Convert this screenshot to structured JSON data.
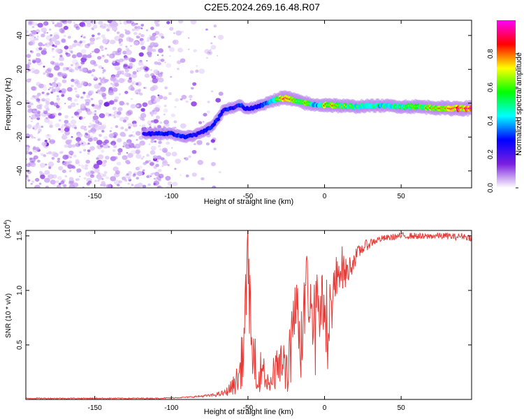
{
  "title": "C2E5.2024.269.16.48.R07",
  "chart_data": [
    {
      "type": "heatmap",
      "xlabel": "Height of straight line (km)",
      "ylabel": "Frequency (Hz)",
      "xlim": [
        -195,
        96
      ],
      "ylim": [
        -50,
        49
      ],
      "x_ticks": [
        -150,
        -100,
        -50,
        0,
        50
      ],
      "y_ticks": [
        -40,
        -20,
        0,
        20,
        40
      ],
      "colorbar": {
        "label": "Normalized spectral amplitude",
        "range": [
          0,
          1
        ],
        "ticks": [
          "0.0",
          "0.2",
          "0.4",
          "0.6",
          "0.8"
        ],
        "colormap": [
          "#ffffff",
          "#7b1fe0",
          "#0000ff",
          "#00ffff",
          "#00ff00",
          "#ffff00",
          "#ff0000",
          "#ff00ff"
        ]
      },
      "ridge": {
        "x": [
          -118,
          -108,
          -100,
          -92,
          -85,
          -80,
          -74,
          -70,
          -66,
          -62,
          -58,
          -55,
          -52,
          -48,
          -44,
          -40,
          -36,
          -32,
          -28,
          -24,
          -20,
          -16,
          -12,
          -8,
          -4,
          0,
          10,
          20,
          30,
          40,
          50,
          60,
          70,
          80,
          90,
          96
        ],
        "y": [
          -18,
          -18,
          -18,
          -20,
          -19,
          -17,
          -14,
          -10,
          -4,
          -3,
          -2,
          -1,
          -3,
          -3,
          -2,
          -1,
          1,
          2,
          3,
          3,
          2,
          1,
          0,
          -1,
          -1,
          -1,
          -1.5,
          -2,
          -1.5,
          -1.5,
          -2,
          -2,
          -2.5,
          -3,
          -3,
          -3
        ],
        "intensity": [
          0.3,
          0.35,
          0.35,
          0.4,
          0.35,
          0.35,
          0.35,
          0.4,
          0.35,
          0.35,
          0.3,
          0.4,
          0.3,
          0.35,
          0.35,
          0.4,
          0.45,
          0.55,
          0.85,
          0.9,
          0.7,
          0.6,
          0.8,
          0.55,
          0.5,
          0.8,
          0.7,
          0.6,
          0.55,
          0.55,
          0.6,
          0.7,
          0.75,
          0.85,
          0.95,
          0.9
        ]
      },
      "noise_region_x": [
        -195,
        -72
      ]
    },
    {
      "type": "line",
      "xlabel": "Height of straight line (km)",
      "ylabel": "SNR (10 * v/v)",
      "y_multiplier": "(x10^4)",
      "xlim": [
        -195,
        96
      ],
      "ylim": [
        0,
        1.55
      ],
      "x_ticks": [
        -150,
        -100,
        -50,
        0,
        50
      ],
      "y_ticks": [
        "0.5",
        "1.0",
        "1.5"
      ],
      "series": [
        {
          "color": "#e53935",
          "envelope_x": [
            -195,
            -110,
            -90,
            -80,
            -72,
            -65,
            -60,
            -56,
            -53,
            -51,
            -50,
            -49,
            -48,
            -46,
            -44,
            -42,
            -40,
            -38,
            -36,
            -34,
            -32,
            -30,
            -28,
            -26,
            -24,
            -22,
            -20,
            -18,
            -16,
            -14,
            -12,
            -10,
            -8,
            -6,
            -4,
            -2,
            0,
            2,
            4,
            6,
            8,
            10,
            12,
            14,
            16,
            18,
            20,
            24,
            28,
            32,
            36,
            40,
            45,
            50,
            55,
            60,
            65,
            70,
            75,
            80,
            85,
            90,
            96
          ],
          "envelope_y": [
            0.01,
            0.01,
            0.02,
            0.03,
            0.04,
            0.06,
            0.12,
            0.2,
            0.45,
            0.9,
            1.55,
            0.9,
            0.5,
            0.35,
            0.3,
            0.25,
            0.3,
            0.2,
            0.15,
            0.25,
            0.2,
            0.4,
            0.3,
            0.35,
            0.25,
            0.5,
            0.9,
            0.8,
            0.6,
            0.7,
            1.1,
            0.9,
            0.75,
            1.05,
            0.85,
            0.85,
            0.9,
            0.8,
            0.85,
            1.0,
            1.1,
            1.25,
            1.2,
            1.15,
            1.2,
            1.25,
            1.3,
            1.38,
            1.42,
            1.45,
            1.47,
            1.48,
            1.49,
            1.5,
            1.5,
            1.5,
            1.49,
            1.5,
            1.5,
            1.5,
            1.49,
            1.5,
            1.48
          ],
          "noise_amplitude": [
            0.005,
            0.005,
            0.005,
            0.01,
            0.015,
            0.03,
            0.08,
            0.15,
            0.3,
            0.4,
            0.3,
            0.45,
            0.3,
            0.25,
            0.2,
            0.2,
            0.2,
            0.15,
            0.15,
            0.2,
            0.2,
            0.25,
            0.2,
            0.25,
            0.2,
            0.3,
            0.3,
            0.3,
            0.35,
            0.35,
            0.3,
            0.3,
            0.3,
            0.3,
            0.3,
            0.3,
            0.3,
            0.3,
            0.3,
            0.25,
            0.25,
            0.2,
            0.2,
            0.15,
            0.12,
            0.1,
            0.08,
            0.06,
            0.05,
            0.04,
            0.03,
            0.03,
            0.03,
            0.03,
            0.03,
            0.03,
            0.03,
            0.03,
            0.03,
            0.03,
            0.03,
            0.03,
            0.03
          ]
        }
      ]
    }
  ]
}
